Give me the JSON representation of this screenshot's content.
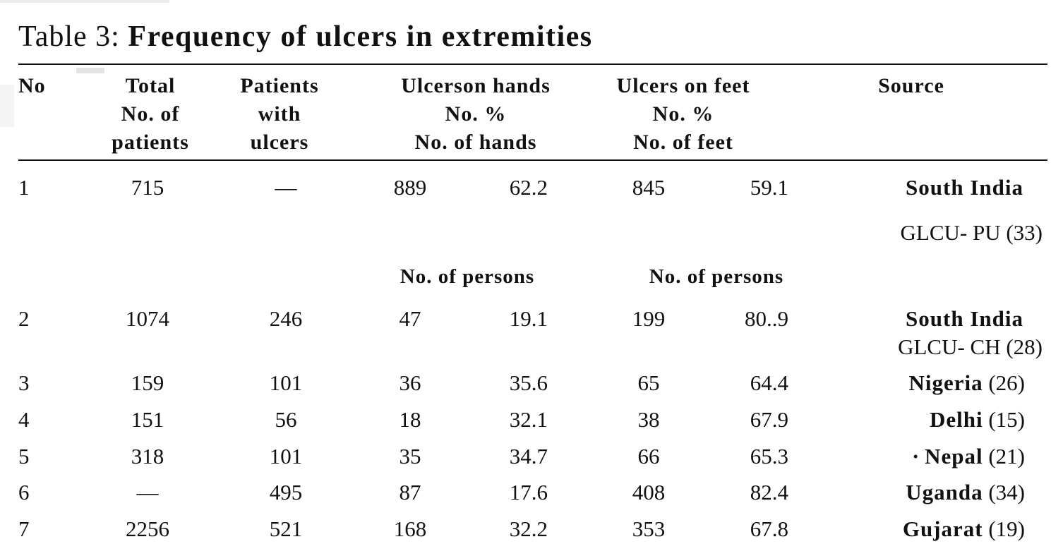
{
  "table": {
    "label": "Table 3:",
    "title": "Frequency of ulcers in extremities",
    "headers": {
      "no": "No",
      "total": [
        "Total",
        "No. of",
        "patients"
      ],
      "with_ulcers": [
        "Patients",
        "with",
        "ulcers"
      ],
      "hands": [
        "Ulcerson hands",
        "No. %",
        "No. of hands"
      ],
      "feet": [
        "Ulcers on feet",
        "No. %",
        "No. of feet"
      ],
      "source": "Source"
    },
    "row1": {
      "no": "1",
      "total": "715",
      "with_ulcers": "—",
      "hands_no": "889",
      "hands_pct": "62.2",
      "feet_no": "845",
      "feet_pct": "59.1",
      "source_name": "South India",
      "source_ref": "GLCU- PU (33)"
    },
    "subheader": {
      "hands": "No. of persons",
      "feet": "No. of persons"
    },
    "rows": [
      {
        "no": "2",
        "total": "1074",
        "with_ulcers": "246",
        "hands_no": "47",
        "hands_pct": "19.1",
        "feet_no": "199",
        "feet_pct": "80..9",
        "source_name": "South India",
        "source_ref": "GLCU- CH (28)"
      },
      {
        "no": "3",
        "total": "159",
        "with_ulcers": "101",
        "hands_no": "36",
        "hands_pct": "35.6",
        "feet_no": "65",
        "feet_pct": "64.4",
        "source_name": "Nigeria",
        "source_ref": "(26)"
      },
      {
        "no": "4",
        "total": "151",
        "with_ulcers": "56",
        "hands_no": "18",
        "hands_pct": "32.1",
        "feet_no": "38",
        "feet_pct": "67.9",
        "source_name": "Delhi",
        "source_ref": "(15)"
      },
      {
        "no": "5",
        "total": "318",
        "with_ulcers": "101",
        "hands_no": "35",
        "hands_pct": "34.7",
        "feet_no": "66",
        "feet_pct": "65.3",
        "source_name": "Nepal",
        "source_ref": "(21)",
        "source_prefix": "·"
      },
      {
        "no": "6",
        "total": "—",
        "with_ulcers": "495",
        "hands_no": "87",
        "hands_pct": "17.6",
        "feet_no": "408",
        "feet_pct": "82.4",
        "source_name": "Uganda",
        "source_ref": "(34)"
      },
      {
        "no": "7",
        "total": "2256",
        "with_ulcers": "521",
        "hands_no": "168",
        "hands_pct": "32.2",
        "feet_no": "353",
        "feet_pct": "67.8",
        "source_name": "Gujarat",
        "source_ref": "(19)"
      }
    ]
  }
}
